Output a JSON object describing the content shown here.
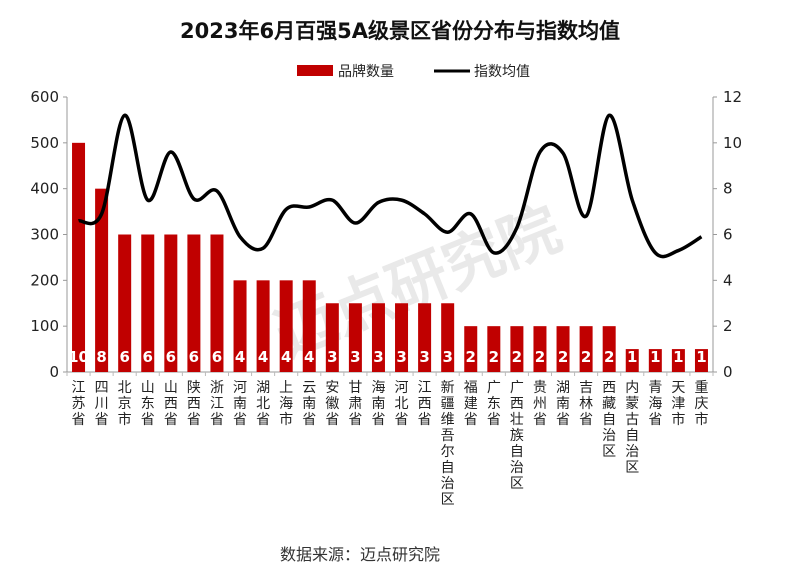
{
  "chart_data": {
    "type": "bar+line",
    "title": "2023年6月百强5A级景区省份分布与指数均值",
    "source": "数据来源：迈点研究院",
    "watermark": "迈点研究院 ACADEMY",
    "categories": [
      "江苏省",
      "四川省",
      "北京市",
      "山东省",
      "山西省",
      "陕西省",
      "浙江省",
      "河南省",
      "湖北省",
      "上海市",
      "云南省",
      "安徽省",
      "甘肃省",
      "海南省",
      "河北省",
      "江西省",
      "新疆维吾尔自治区",
      "福建省",
      "广东省",
      "广西壮族自治区",
      "贵州省",
      "湖南省",
      "吉林省",
      "西藏自治区",
      "内蒙古自治区",
      "青海省",
      "天津市",
      "重庆市"
    ],
    "series": [
      {
        "name": "品牌数量",
        "type": "bar",
        "axis": "left",
        "color": "#c00000",
        "labels": [
          10,
          8,
          6,
          6,
          6,
          6,
          6,
          4,
          4,
          4,
          4,
          3,
          3,
          3,
          3,
          3,
          3,
          2,
          2,
          2,
          2,
          2,
          2,
          2,
          1,
          1,
          1,
          1
        ],
        "values": [
          500,
          400,
          300,
          300,
          300,
          300,
          300,
          200,
          200,
          200,
          200,
          150,
          150,
          150,
          150,
          150,
          150,
          100,
          100,
          100,
          100,
          100,
          100,
          100,
          50,
          50,
          50,
          50
        ]
      },
      {
        "name": "指数均值",
        "type": "line",
        "axis": "right",
        "color": "#000000",
        "values": [
          6.6,
          6.9,
          11.2,
          7.5,
          9.6,
          7.55,
          7.9,
          5.9,
          5.4,
          7.1,
          7.2,
          7.5,
          6.5,
          7.4,
          7.5,
          6.9,
          6.1,
          6.9,
          5.2,
          6.3,
          9.6,
          9.55,
          6.8,
          11.2,
          7.5,
          5.2,
          5.3,
          5.9
        ]
      }
    ],
    "left_axis": {
      "range": [
        0,
        600
      ],
      "ticks": [
        0,
        100,
        200,
        300,
        400,
        500,
        600
      ]
    },
    "right_axis": {
      "range": [
        0,
        12
      ],
      "ticks": [
        0,
        2,
        4,
        6,
        8,
        10,
        12
      ]
    },
    "legend": {
      "position": "top-center",
      "items": [
        "品牌数量",
        "指数均值"
      ]
    },
    "grid": false
  }
}
